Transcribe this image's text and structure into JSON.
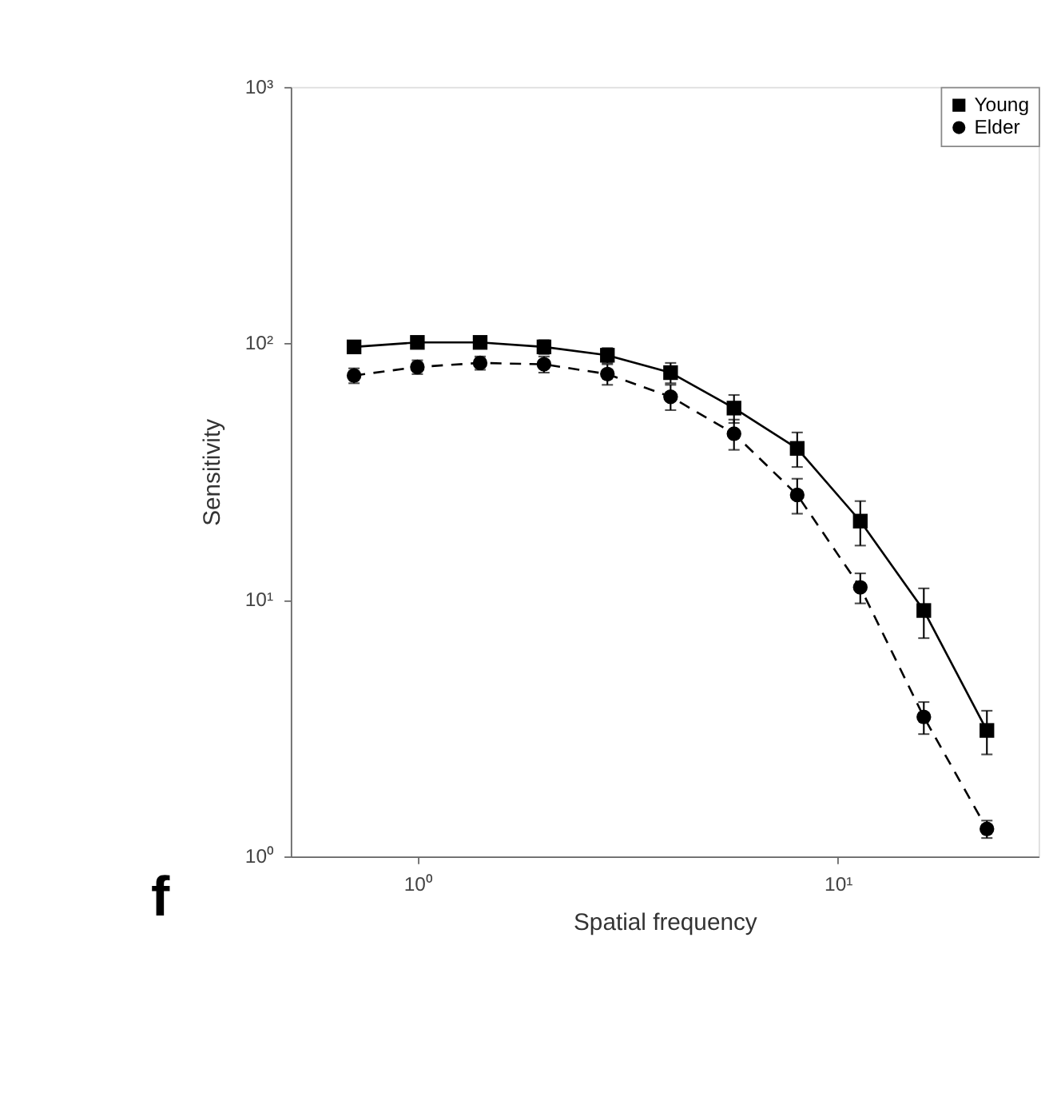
{
  "chart_data": {
    "type": "line",
    "xlabel": "Spatial frequency",
    "ylabel": "Sensitivity",
    "log": "xy",
    "x": [
      0.707,
      1,
      1.41,
      2,
      2.83,
      4,
      5.66,
      8,
      11.3,
      16,
      22.6
    ],
    "xlim": [
      0.5,
      30
    ],
    "xticks": [
      {
        "value": 1,
        "label": "10⁰"
      },
      {
        "value": 10,
        "label": "10¹"
      }
    ],
    "ylim": [
      1,
      1000
    ],
    "yticks": [
      {
        "value": 1,
        "label": "10⁰"
      },
      {
        "value": 10,
        "label": "10¹"
      },
      {
        "value": 100,
        "label": "10²"
      },
      {
        "value": 1000,
        "label": "10³"
      }
    ],
    "series": [
      {
        "name": "Young",
        "color": "#000000",
        "marker": "square",
        "line_style": "solid",
        "values": [
          97,
          101,
          101,
          97,
          90,
          77,
          56,
          39,
          20.3,
          9.1,
          3.1
        ],
        "errors": [
          5,
          5,
          5,
          6,
          6,
          7,
          7,
          6,
          4,
          2,
          0.6
        ]
      },
      {
        "name": "Elder",
        "color": "#000000",
        "marker": "circle",
        "line_style": "dashed",
        "values": [
          75,
          81,
          84,
          83,
          76,
          62,
          44.5,
          25.7,
          11.2,
          3.5,
          1.28
        ],
        "errors": [
          5,
          5,
          5,
          6,
          7,
          7,
          6,
          4,
          1.5,
          0.5,
          0.1
        ]
      }
    ],
    "legend": "top right",
    "grid": false,
    "annotations": [
      "f"
    ]
  }
}
